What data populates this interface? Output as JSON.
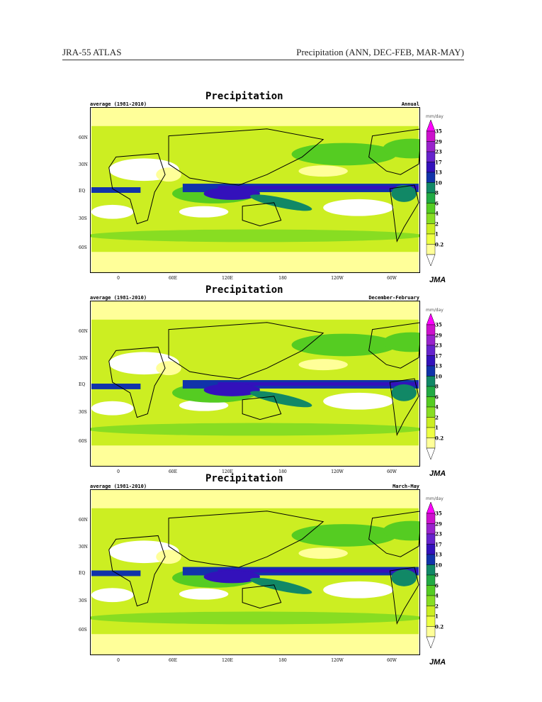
{
  "header": {
    "left": "JRA-55 ATLAS",
    "right": "Precipitation (ANN, DEC-FEB, MAR-MAY)"
  },
  "panels": [
    {
      "title": "Precipitation",
      "subtitle": "average (1981-2010)",
      "season": "Annual",
      "itcz_shift": 0
    },
    {
      "title": "Precipitation",
      "subtitle": "average (1981-2010)",
      "season": "December-February",
      "itcz_shift": 8
    },
    {
      "title": "Precipitation",
      "subtitle": "average (1981-2010)",
      "season": "March-May",
      "itcz_shift": 3
    }
  ],
  "lat_labels": [
    "60N",
    "30N",
    "EQ",
    "30S",
    "60S"
  ],
  "lon_labels": [
    "0",
    "60E",
    "120E",
    "180",
    "120W",
    "60W"
  ],
  "colorbar": {
    "unit": "mm/day",
    "levels": [
      "35",
      "29",
      "23",
      "17",
      "13",
      "10",
      "8",
      "6",
      "4",
      "2",
      "1",
      "0.2"
    ],
    "colors": [
      "#ff00ff",
      "#cc11cc",
      "#9922cc",
      "#6622cc",
      "#3311bb",
      "#1133aa",
      "#118866",
      "#22aa44",
      "#55cc22",
      "#88dd22",
      "#ccee22",
      "#eeff44",
      "#ffff99",
      "#ffffff"
    ]
  },
  "logo": "JMA"
}
